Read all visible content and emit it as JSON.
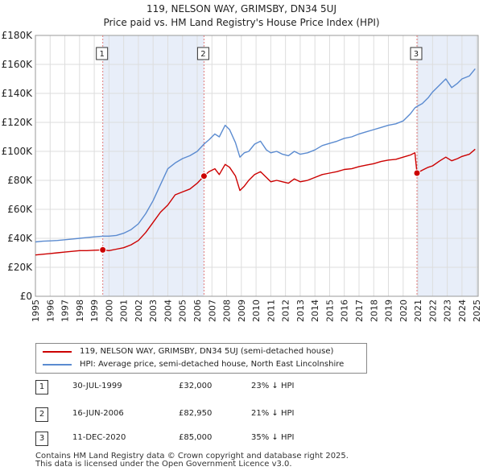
{
  "chart_data": {
    "type": "line",
    "title": "119, NELSON WAY, GRIMSBY, DN34 5UJ",
    "subtitle": "Price paid vs. HM Land Registry's House Price Index (HPI)",
    "xlabel": "",
    "ylabel": "",
    "xlim": [
      1995,
      2025.1
    ],
    "ylim": [
      0,
      180000
    ],
    "y_ticks": [
      0,
      20000,
      40000,
      60000,
      80000,
      100000,
      120000,
      140000,
      160000,
      180000
    ],
    "y_tick_labels": [
      "£0",
      "£20K",
      "£40K",
      "£60K",
      "£80K",
      "£100K",
      "£120K",
      "£140K",
      "£160K",
      "£180K"
    ],
    "x_ticks": [
      1995,
      1996,
      1997,
      1998,
      1999,
      2000,
      2001,
      2002,
      2003,
      2004,
      2005,
      2006,
      2007,
      2008,
      2009,
      2010,
      2011,
      2012,
      2013,
      2014,
      2015,
      2016,
      2017,
      2018,
      2019,
      2020,
      2021,
      2022,
      2023,
      2024,
      2025
    ],
    "x_tick_labels": [
      "1995",
      "1996",
      "1997",
      "1998",
      "1999",
      "2000",
      "2001",
      "2002",
      "2003",
      "2004",
      "2005",
      "2006",
      "2007",
      "2008",
      "2009",
      "2010",
      "2011",
      "2012",
      "2013",
      "2014",
      "2015",
      "2016",
      "2017",
      "2018",
      "2019",
      "2020",
      "2021",
      "2022",
      "2023",
      "2024",
      "2025"
    ],
    "grid": true,
    "legend_position": "below",
    "series": [
      {
        "name": "119, NELSON WAY, GRIMSBY, DN34 5UJ (semi-detached house)",
        "color": "#cc0000",
        "x": [
          1995.0,
          1995.5,
          1996.0,
          1996.5,
          1997.0,
          1997.5,
          1998.0,
          1998.5,
          1999.0,
          1999.58,
          2000.0,
          2000.5,
          2001.0,
          2001.5,
          2002.0,
          2002.5,
          2003.0,
          2003.5,
          2004.0,
          2004.5,
          2005.0,
          2005.5,
          2006.0,
          2006.46,
          2006.8,
          2007.2,
          2007.5,
          2007.9,
          2008.2,
          2008.6,
          2008.9,
          2009.2,
          2009.5,
          2009.9,
          2010.3,
          2010.7,
          2011.0,
          2011.4,
          2011.8,
          2012.2,
          2012.6,
          2013.0,
          2013.5,
          2014.0,
          2014.5,
          2015.0,
          2015.5,
          2016.0,
          2016.5,
          2017.0,
          2017.5,
          2018.0,
          2018.5,
          2019.0,
          2019.5,
          2020.0,
          2020.5,
          2020.8,
          2020.94,
          2021.3,
          2021.7,
          2022.0,
          2022.5,
          2022.9,
          2023.3,
          2023.7,
          2024.0,
          2024.5,
          2024.9
        ],
        "values": [
          28500,
          29000,
          29500,
          30000,
          30500,
          31000,
          31500,
          31500,
          31800,
          32000,
          31500,
          32500,
          33500,
          35500,
          38500,
          44000,
          51000,
          58000,
          63000,
          70000,
          72000,
          74000,
          78000,
          82950,
          86000,
          88000,
          84000,
          91000,
          89000,
          83000,
          73000,
          76000,
          80000,
          84000,
          86000,
          82000,
          79000,
          80000,
          79000,
          78000,
          81000,
          79000,
          80000,
          82000,
          84000,
          85000,
          86000,
          87500,
          88000,
          89500,
          90500,
          91500,
          93000,
          94000,
          94500,
          96000,
          97500,
          99000,
          85000,
          87000,
          89000,
          90000,
          93500,
          96000,
          93500,
          95000,
          96500,
          98000,
          101500
        ]
      },
      {
        "name": "HPI: Average price, semi-detached house, North East Lincolnshire",
        "color": "#5b8bd0",
        "x": [
          1995.0,
          1995.5,
          1996.0,
          1996.5,
          1997.0,
          1997.5,
          1998.0,
          1998.5,
          1999.0,
          1999.58,
          2000.0,
          2000.5,
          2001.0,
          2001.5,
          2002.0,
          2002.5,
          2003.0,
          2003.5,
          2004.0,
          2004.5,
          2005.0,
          2005.5,
          2006.0,
          2006.46,
          2006.8,
          2007.2,
          2007.5,
          2007.9,
          2008.2,
          2008.6,
          2008.9,
          2009.2,
          2009.5,
          2009.9,
          2010.3,
          2010.7,
          2011.0,
          2011.4,
          2011.8,
          2012.2,
          2012.6,
          2013.0,
          2013.5,
          2014.0,
          2014.5,
          2015.0,
          2015.5,
          2016.0,
          2016.5,
          2017.0,
          2017.5,
          2018.0,
          2018.5,
          2019.0,
          2019.5,
          2020.0,
          2020.5,
          2020.8,
          2020.94,
          2021.3,
          2021.7,
          2022.0,
          2022.5,
          2022.9,
          2023.3,
          2023.7,
          2024.0,
          2024.5,
          2024.9
        ],
        "values": [
          37500,
          38000,
          38200,
          38500,
          39000,
          39500,
          40000,
          40500,
          41000,
          41500,
          41500,
          42000,
          43500,
          46000,
          50000,
          57000,
          66000,
          77000,
          88000,
          92000,
          95000,
          97000,
          100000,
          105000,
          108000,
          112000,
          110000,
          118000,
          115000,
          106000,
          96000,
          99000,
          100000,
          105000,
          107000,
          101000,
          99000,
          100000,
          98000,
          97000,
          100000,
          98000,
          99000,
          101000,
          104000,
          105500,
          107000,
          109000,
          110000,
          112000,
          113500,
          115000,
          116500,
          118000,
          119000,
          121000,
          126000,
          130000,
          131000,
          133000,
          137000,
          141000,
          146000,
          150000,
          144000,
          147000,
          150000,
          152000,
          157000
        ]
      }
    ],
    "sale_markers": [
      {
        "label": "1",
        "x": 1999.58,
        "value": 32000
      },
      {
        "label": "2",
        "x": 2006.46,
        "value": 82950
      },
      {
        "label": "3",
        "x": 2020.94,
        "value": 85000
      }
    ]
  },
  "legend": {
    "property_label": "119, NELSON WAY, GRIMSBY, DN34 5UJ (semi-detached house)",
    "hpi_label": "HPI: Average price, semi-detached house, North East Lincolnshire"
  },
  "sales": [
    {
      "num": "1",
      "date": "30-JUL-1999",
      "price": "£32,000",
      "hpi": "23% ↓ HPI"
    },
    {
      "num": "2",
      "date": "16-JUN-2006",
      "price": "£82,950",
      "hpi": "21% ↓ HPI"
    },
    {
      "num": "3",
      "date": "11-DEC-2020",
      "price": "£85,000",
      "hpi": "35% ↓ HPI"
    }
  ],
  "footer": {
    "line1": "Contains HM Land Registry data © Crown copyright and database right 2025.",
    "line2": "This data is licensed under the Open Government Licence v3.0."
  },
  "colors": {
    "property": "#cc0000",
    "hpi": "#5b8bd0",
    "shade": "#e8eef9",
    "vline": "#e07a7a"
  }
}
